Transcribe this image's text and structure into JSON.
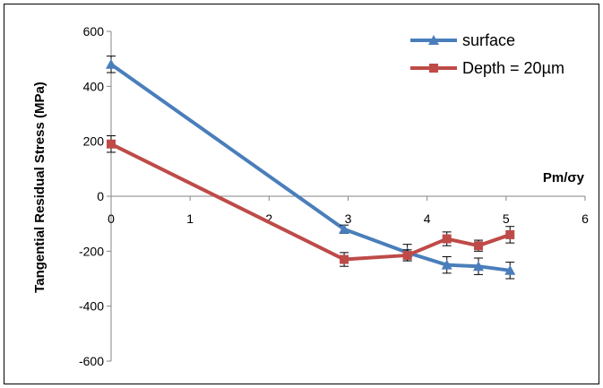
{
  "chart_data": {
    "type": "line",
    "xlabel": "Pm/σy",
    "ylabel": "Tangential Residual Stress (MPa)",
    "xlim": [
      0,
      6
    ],
    "ylim": [
      -600,
      600
    ],
    "x_ticks": [
      "0",
      "1",
      "2",
      "3",
      "4",
      "5",
      "6"
    ],
    "y_ticks": [
      "600",
      "400",
      "200",
      "0",
      "-200",
      "-400",
      "-600"
    ],
    "grid": false,
    "legend_position": "top-right",
    "series": [
      {
        "name": "surface",
        "color": "#4a7ebb",
        "marker": "triangle",
        "x": [
          0,
          2.95,
          3.75,
          4.25,
          4.65,
          5.05
        ],
        "y": [
          480,
          -120,
          -205,
          -250,
          -255,
          -270
        ],
        "error": [
          30,
          15,
          30,
          30,
          30,
          30
        ]
      },
      {
        "name": "Depth = 20µm",
        "color": "#be4b48",
        "marker": "square",
        "x": [
          0,
          2.95,
          3.75,
          4.25,
          4.65,
          5.05
        ],
        "y": [
          190,
          -230,
          -215,
          -155,
          -180,
          -140
        ],
        "error": [
          30,
          25,
          20,
          25,
          20,
          30
        ]
      }
    ]
  }
}
